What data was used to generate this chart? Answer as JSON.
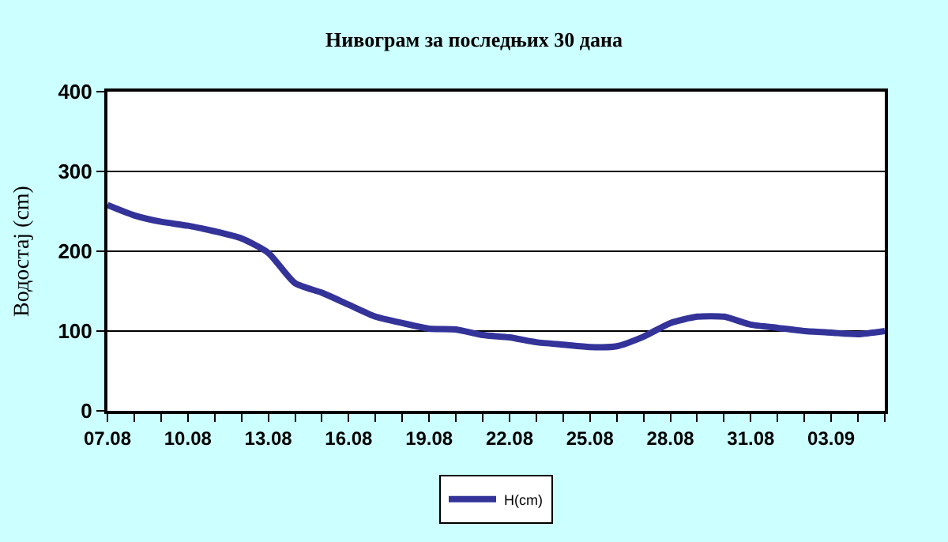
{
  "chart_data": {
    "type": "line",
    "title": "Нивограм за последњих 30 дана",
    "ylabel": "Водостај (cm)",
    "categories": [
      "07.08",
      null,
      null,
      "10.08",
      null,
      null,
      "13.08",
      null,
      null,
      "16.08",
      null,
      null,
      "19.08",
      null,
      null,
      "22.08",
      null,
      null,
      "25.08",
      null,
      null,
      "28.08",
      null,
      null,
      "31.08",
      null,
      null,
      "03.09",
      null,
      null
    ],
    "series": [
      {
        "name": "H(cm)",
        "color": "#333399",
        "values": [
          258,
          245,
          237,
          232,
          225,
          216,
          198,
          160,
          148,
          133,
          118,
          110,
          103,
          102,
          95,
          92,
          86,
          83,
          80,
          81,
          93,
          110,
          118,
          118,
          108,
          104,
          100,
          98,
          96,
          100
        ]
      }
    ],
    "ylim": [
      0,
      400
    ],
    "yticks": [
      0,
      100,
      200,
      300,
      400
    ],
    "grid": "y",
    "legend": "bottom",
    "marker": "none",
    "line_style": "solid"
  }
}
